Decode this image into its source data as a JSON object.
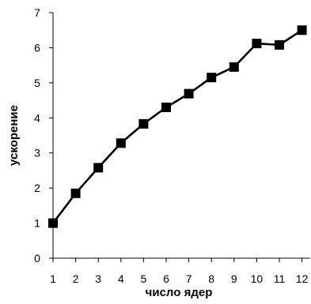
{
  "chart_data": {
    "type": "line",
    "title": "",
    "xlabel": "число ядер",
    "ylabel": "ускорение",
    "x": [
      1,
      2,
      3,
      4,
      5,
      6,
      7,
      8,
      9,
      10,
      11,
      12
    ],
    "series": [
      {
        "values": [
          1.0,
          1.85,
          2.58,
          3.28,
          3.83,
          4.3,
          4.69,
          5.15,
          5.45,
          6.12,
          6.08,
          6.5
        ]
      }
    ],
    "xlim": [
      1,
      12
    ],
    "ylim": [
      0,
      7
    ],
    "yticks": [
      0,
      1,
      2,
      3,
      4,
      5,
      6,
      7
    ],
    "xticks": [
      1,
      2,
      3,
      4,
      5,
      6,
      7,
      8,
      9,
      10,
      11,
      12
    ],
    "grid": false,
    "legend": "none",
    "line_color": "#000000",
    "marker": "square"
  }
}
